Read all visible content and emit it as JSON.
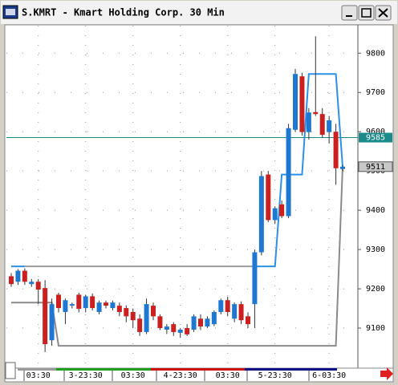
{
  "window_title": "S.KMRT - Kmart Holding Corp. 30 Min",
  "chart_data": {
    "type": "candlestick",
    "categories": [
      null,
      null,
      null,
      null,
      "03:30",
      null,
      null,
      null,
      null,
      null,
      null,
      "3-23:30",
      null,
      null,
      null,
      null,
      null,
      null,
      "03:30",
      null,
      null,
      null,
      null,
      null,
      null,
      "4-23:30",
      null,
      null,
      null,
      null,
      null,
      null,
      "03:30",
      null,
      null,
      null,
      null,
      null,
      null,
      "5-23:30",
      null,
      null,
      null,
      null,
      null,
      null,
      null,
      "6-03:30",
      null,
      null
    ],
    "open": [
      9232,
      9218,
      9246,
      9212,
      9218,
      9202,
      9069,
      9185,
      9141,
      9157,
      9185,
      9151,
      9181,
      9141,
      9165,
      9151,
      9157,
      9151,
      9141,
      9124,
      9090,
      9157,
      9130,
      9096,
      9110,
      9088,
      9100,
      9096,
      9124,
      9104,
      9110,
      9141,
      9171,
      9124,
      9161,
      9130,
      9161,
      9293,
      9491,
      9375,
      9415,
      9385,
      9605,
      9741,
      9599,
      9650,
      9645,
      9599,
      9600,
      9505
    ],
    "high": [
      9240,
      9250,
      9252,
      9225,
      9225,
      9222,
      9175,
      9190,
      9175,
      9165,
      9190,
      9185,
      9188,
      9170,
      9170,
      9170,
      9165,
      9158,
      9150,
      9135,
      9175,
      9165,
      9135,
      9110,
      9115,
      9100,
      9110,
      9135,
      9135,
      9130,
      9145,
      9175,
      9180,
      9165,
      9168,
      9140,
      9300,
      9500,
      9500,
      9410,
      9425,
      9620,
      9760,
      9750,
      9660,
      9843,
      9660,
      9640,
      9620,
      9515
    ],
    "low": [
      9205,
      9210,
      9210,
      9205,
      9161,
      9039,
      9055,
      9140,
      9110,
      9150,
      9140,
      9140,
      9145,
      9135,
      9150,
      9145,
      9130,
      9115,
      9100,
      9080,
      9085,
      9120,
      9095,
      9085,
      9080,
      9075,
      9080,
      9090,
      9095,
      9100,
      9105,
      9135,
      9130,
      9115,
      9110,
      9100,
      9100,
      9285,
      9370,
      9365,
      9380,
      9380,
      9600,
      9590,
      9580,
      9640,
      9585,
      9570,
      9465,
      9500
    ],
    "close": [
      9212,
      9246,
      9218,
      9218,
      9198,
      9059,
      9161,
      9151,
      9171,
      9161,
      9149,
      9181,
      9151,
      9165,
      9157,
      9165,
      9141,
      9130,
      9120,
      9090,
      9161,
      9130,
      9100,
      9104,
      9090,
      9096,
      9084,
      9130,
      9104,
      9124,
      9141,
      9171,
      9141,
      9161,
      9120,
      9110,
      9293,
      9487,
      9375,
      9405,
      9385,
      9609,
      9747,
      9599,
      9649,
      9645,
      9592,
      9629,
      9507,
      9511
    ],
    "up_color": "#1e78d2",
    "down_color": "#cc2020",
    "overlays": [
      {
        "color": "#2a90e8",
        "values": [
          9257,
          9257,
          9257,
          null,
          null,
          null,
          null,
          null,
          null,
          null,
          null,
          null,
          null,
          null,
          null,
          null,
          null,
          null,
          null,
          null,
          null,
          null,
          null,
          null,
          null,
          null,
          null,
          null,
          null,
          null,
          null,
          null,
          null,
          null,
          null,
          null,
          9257,
          9257,
          9257,
          9257,
          9491,
          9491,
          9491,
          9491,
          9747,
          9747,
          9747,
          9747,
          9747,
          9511
        ]
      },
      {
        "color": "#9a9a9a",
        "values": [
          null,
          null,
          9257,
          9257,
          9257,
          9257,
          9257,
          9257,
          9257,
          9257,
          9257,
          9257,
          9257,
          9257,
          9257,
          9257,
          9257,
          9257,
          9257,
          9257,
          9257,
          9257,
          9257,
          9257,
          9257,
          9257,
          9257,
          9257,
          9257,
          9257,
          9257,
          9257,
          9257,
          9257,
          9257,
          9257,
          9257,
          null,
          null,
          null,
          null,
          null,
          null,
          null,
          null,
          null,
          null,
          null,
          null,
          null
        ]
      },
      {
        "color": "#8a8a8a",
        "values": [
          9165,
          9165,
          9165,
          9165,
          9165,
          9165,
          9165,
          9055,
          9055,
          9055,
          9055,
          9055,
          9055,
          9055,
          9055,
          9055,
          9055,
          9055,
          9055,
          9055,
          9055,
          9055,
          9055,
          9055,
          9055,
          9055,
          9055,
          9055,
          9055,
          9055,
          9055,
          9055,
          9055,
          9055,
          9055,
          9055,
          9055,
          9055,
          9055,
          9055,
          9055,
          9055,
          9055,
          9055,
          9055,
          9055,
          9055,
          9055,
          9055,
          9511
        ]
      }
    ],
    "hline": 9585,
    "hline_color": "#1b8a8a",
    "ylim": [
      9000,
      9870
    ],
    "yticks": [
      9100,
      9200,
      9300,
      9400,
      9500,
      9600,
      9700,
      9800
    ],
    "grid": true
  }
}
